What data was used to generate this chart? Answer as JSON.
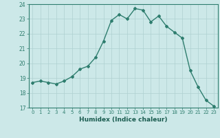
{
  "x": [
    0,
    1,
    2,
    3,
    4,
    5,
    6,
    7,
    8,
    9,
    10,
    11,
    12,
    13,
    14,
    15,
    16,
    17,
    18,
    19,
    20,
    21,
    22,
    23
  ],
  "y": [
    18.7,
    18.8,
    18.7,
    18.6,
    18.8,
    19.1,
    19.6,
    19.8,
    20.4,
    21.5,
    22.9,
    23.3,
    23.0,
    23.7,
    23.6,
    22.8,
    23.2,
    22.5,
    22.1,
    21.7,
    19.5,
    18.4,
    17.5,
    17.1
  ],
  "ylim": [
    17,
    24
  ],
  "yticks": [
    17,
    18,
    19,
    20,
    21,
    22,
    23,
    24
  ],
  "xtick_labels": [
    "0",
    "1",
    "2",
    "3",
    "4",
    "5",
    "6",
    "7",
    "8",
    "9",
    "10",
    "11",
    "12",
    "13",
    "14",
    "15",
    "16",
    "17",
    "18",
    "19",
    "20",
    "21",
    "22",
    "23"
  ],
  "xlabel": "Humidex (Indice chaleur)",
  "line_color": "#2e7d6e",
  "bg_color": "#cce8e8",
  "grid_color": "#aed0d0",
  "tick_color": "#2e7d6e",
  "label_color": "#1a5c50",
  "marker": "D",
  "markersize": 2.0,
  "linewidth": 1.0
}
